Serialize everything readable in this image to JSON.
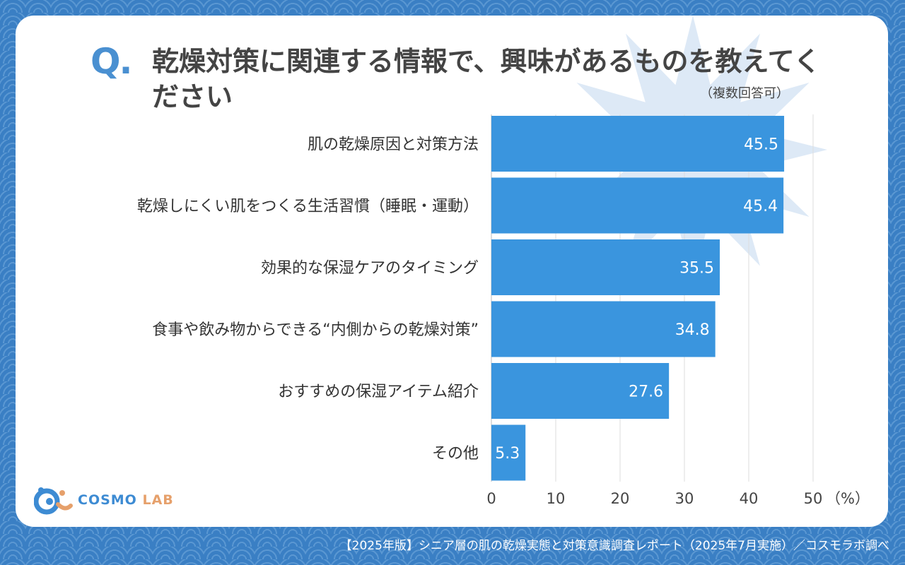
{
  "title": {
    "q_mark": "Q.",
    "question": "乾燥対策に関連する情報で、興味があるものを教えてください",
    "note": "（複数回答可）"
  },
  "chart_data": {
    "type": "bar",
    "orientation": "horizontal",
    "categories": [
      "肌の乾燥原因と対策方法",
      "乾燥しにくい肌をつくる生活習慣（睡眠・運動）",
      "効果的な保湿ケアのタイミング",
      "食事や飲み物からできる“内側からの乾燥対策”",
      "おすすめの保湿アイテム紹介",
      "その他"
    ],
    "values": [
      45.5,
      45.4,
      35.5,
      34.8,
      27.6,
      5.3
    ],
    "value_labels": [
      "45.5",
      "45.4",
      "35.5",
      "34.8",
      "27.6",
      "5.3"
    ],
    "xlim": [
      0,
      50
    ],
    "xticks": [
      "0",
      "10",
      "20",
      "30",
      "40",
      "50"
    ],
    "unit": "（%）",
    "grid": true,
    "bar_color": "#3a95de"
  },
  "logo": {
    "main": "COSMO",
    "sub": "LAB"
  },
  "footer": "【2025年版】シニア層の肌の乾燥実態と対策意識調査レポート（2025年7月実施）／コスモラボ調べ",
  "colors": {
    "accent": "#4a90d1",
    "background": "#3a7fc4",
    "star": "#dde9f6"
  }
}
